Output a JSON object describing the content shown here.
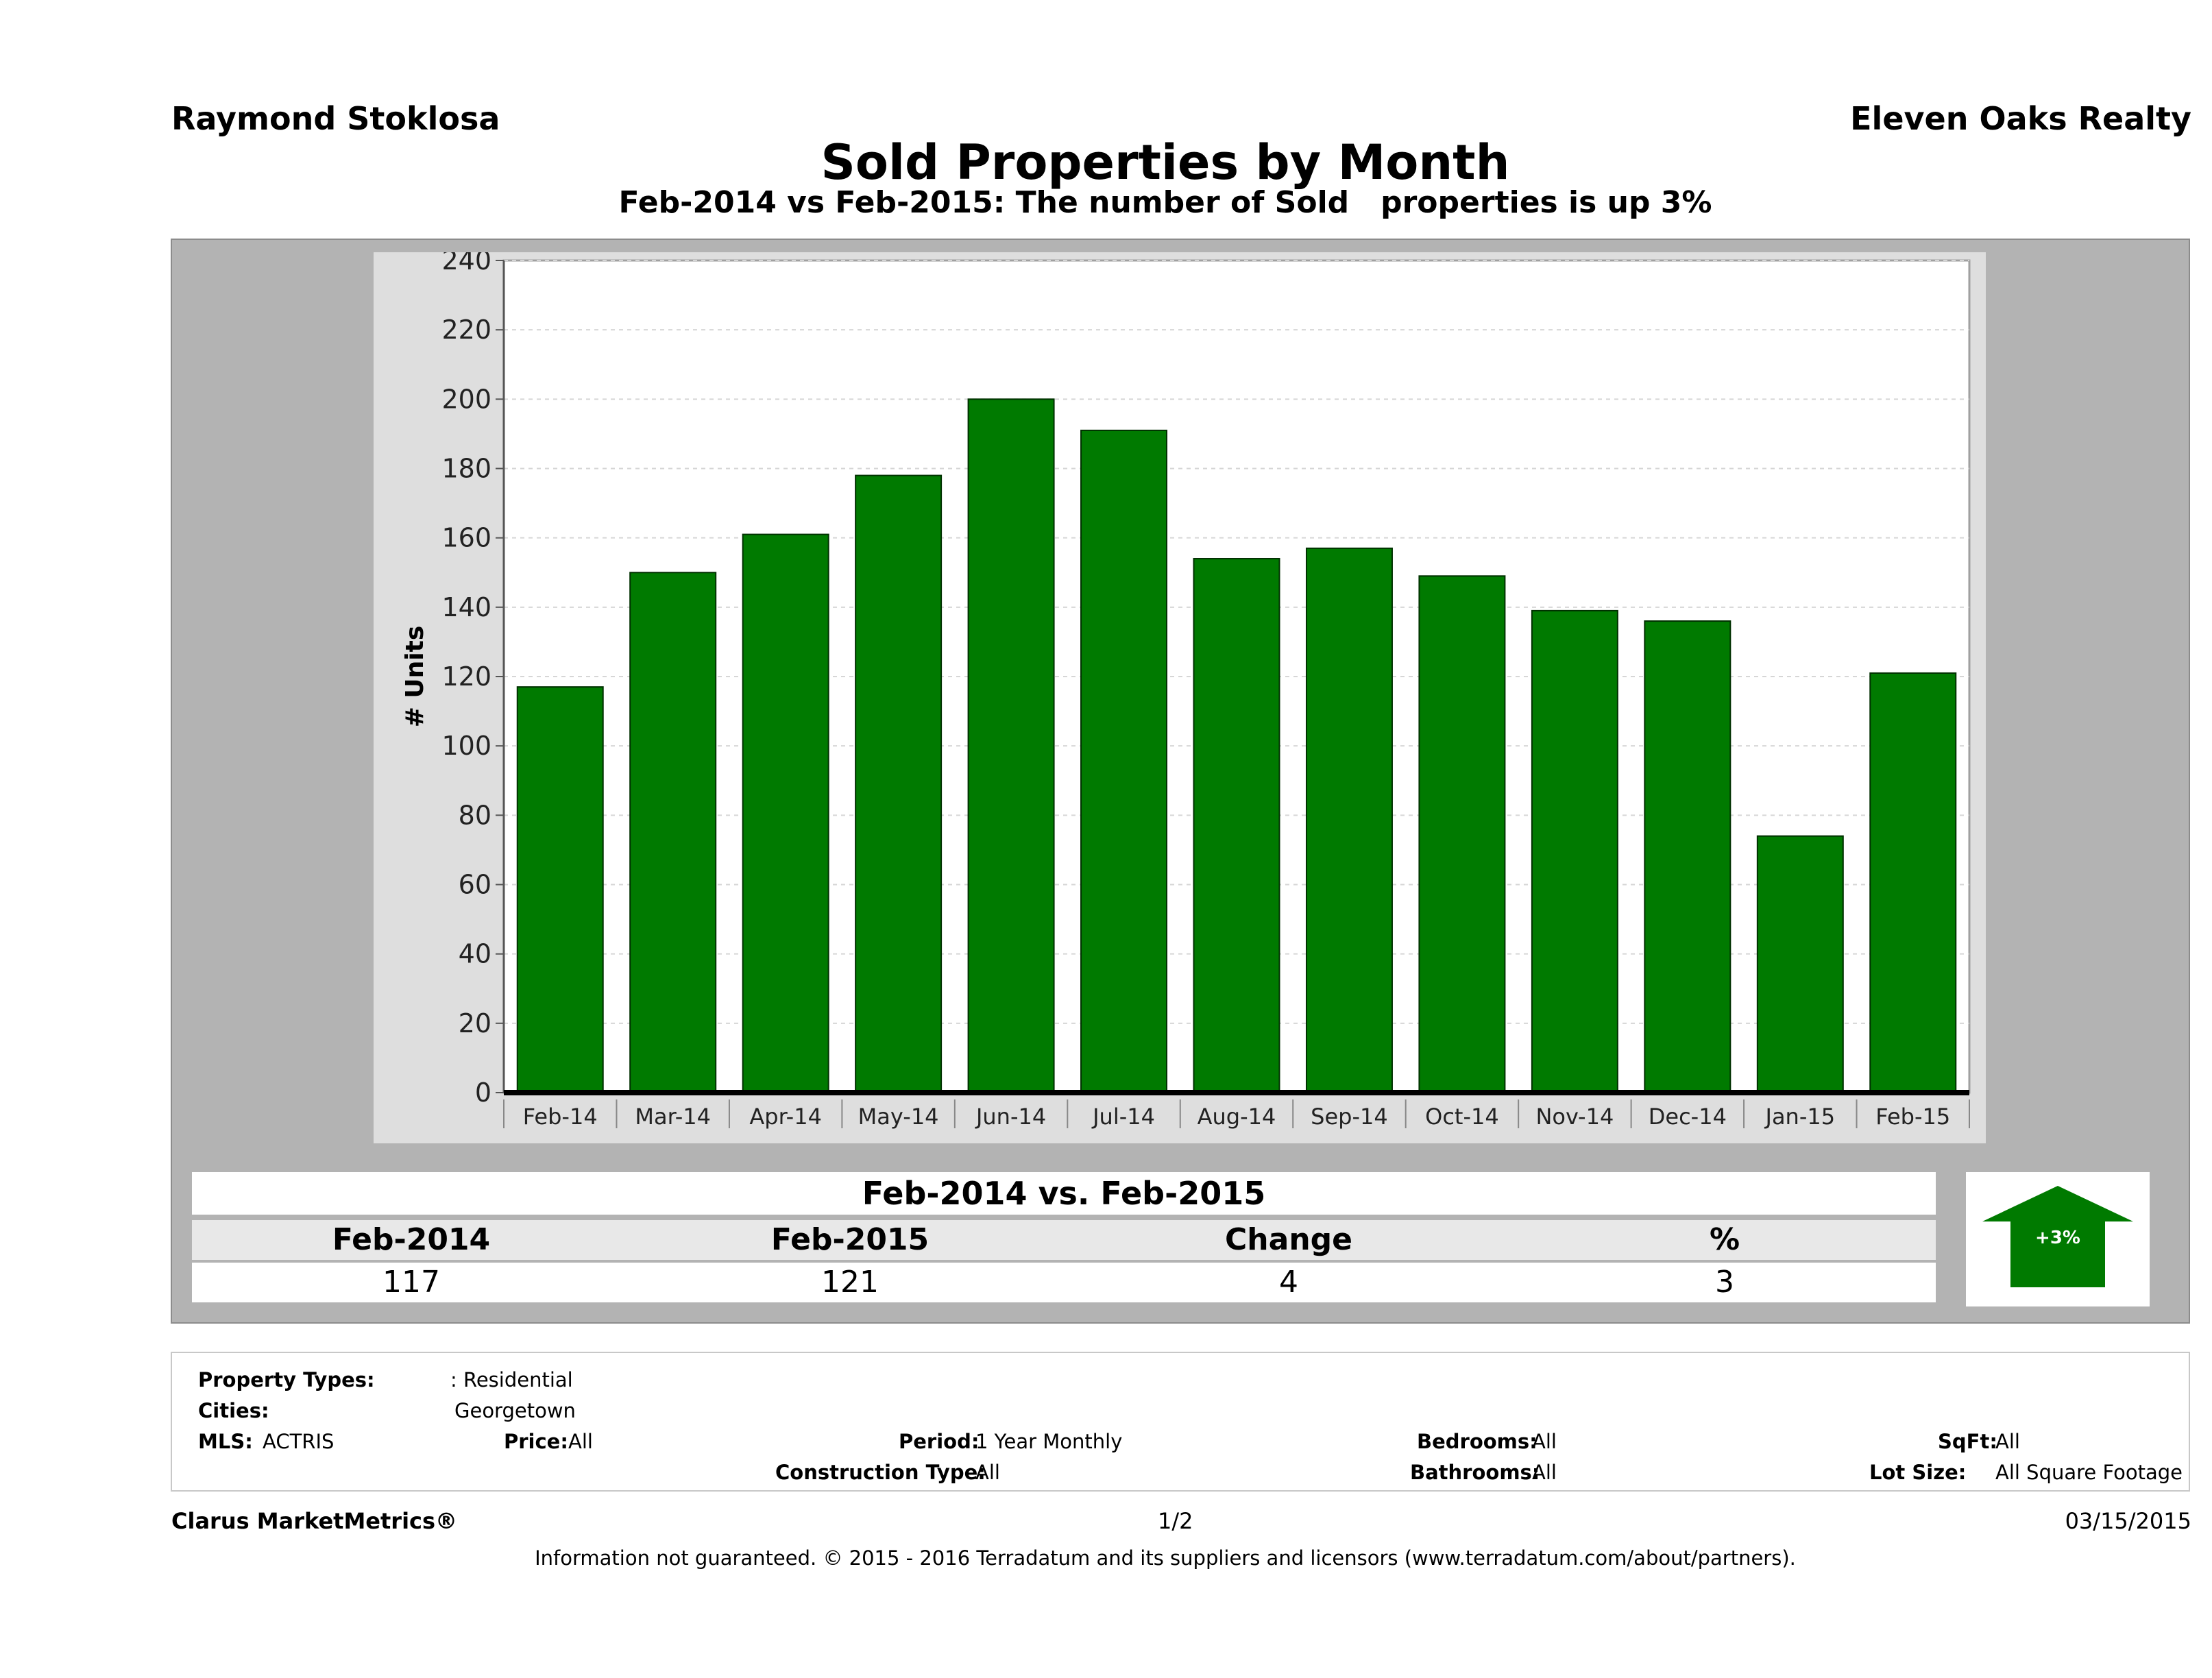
{
  "header": {
    "agent": "Raymond Stoklosa",
    "brokerage": "Eleven Oaks Realty",
    "title": "Sold Properties by Month",
    "subtitle": "Feb-2014 vs Feb-2015: The number of Sold   properties is up 3%"
  },
  "chart_data": {
    "type": "bar",
    "ylabel": "# Units",
    "categories": [
      "Feb-14",
      "Mar-14",
      "Apr-14",
      "May-14",
      "Jun-14",
      "Jul-14",
      "Aug-14",
      "Sep-14",
      "Oct-14",
      "Nov-14",
      "Dec-14",
      "Jan-15",
      "Feb-15"
    ],
    "values": [
      117,
      150,
      161,
      178,
      200,
      191,
      154,
      157,
      149,
      139,
      136,
      74,
      121
    ],
    "ylim": [
      0,
      240
    ],
    "yticks": [
      0,
      20,
      40,
      60,
      80,
      100,
      120,
      140,
      160,
      180,
      200,
      220,
      240
    ],
    "grid": true,
    "bar_color": "#007a00"
  },
  "summary": {
    "title": "Feb-2014 vs. Feb-2015",
    "headers": [
      "Feb-2014",
      "Feb-2015",
      "Change",
      "%"
    ],
    "values": [
      "117",
      "121",
      "4",
      "3"
    ],
    "badge": "+3%",
    "badge_color": "#007a00"
  },
  "filters": {
    "property_types_label": "Property Types:",
    "property_types_value": ": Residential",
    "cities_label": "Cities:",
    "cities_value": "Georgetown",
    "mls_label": "MLS:",
    "mls_value": "ACTRIS",
    "price_label": "Price:",
    "price_value": "All",
    "period_label": "Period:",
    "period_value": "1 Year Monthly",
    "construction_label": "Construction Type:",
    "construction_value": "All",
    "bedrooms_label": "Bedrooms:",
    "bedrooms_value": "All",
    "bathrooms_label": "Bathrooms:",
    "bathrooms_value": "All",
    "sqft_label": "SqFt:",
    "sqft_value": "All",
    "lotsize_label": "Lot Size:",
    "lotsize_value": "All Square Footage"
  },
  "footer": {
    "brand": "Clarus MarketMetrics®",
    "page": "1/2",
    "date": "03/15/2015",
    "disclaimer": "Information not guaranteed. © 2015 - 2016 Terradatum and its suppliers and licensors (www.terradatum.com/about/partners)."
  }
}
